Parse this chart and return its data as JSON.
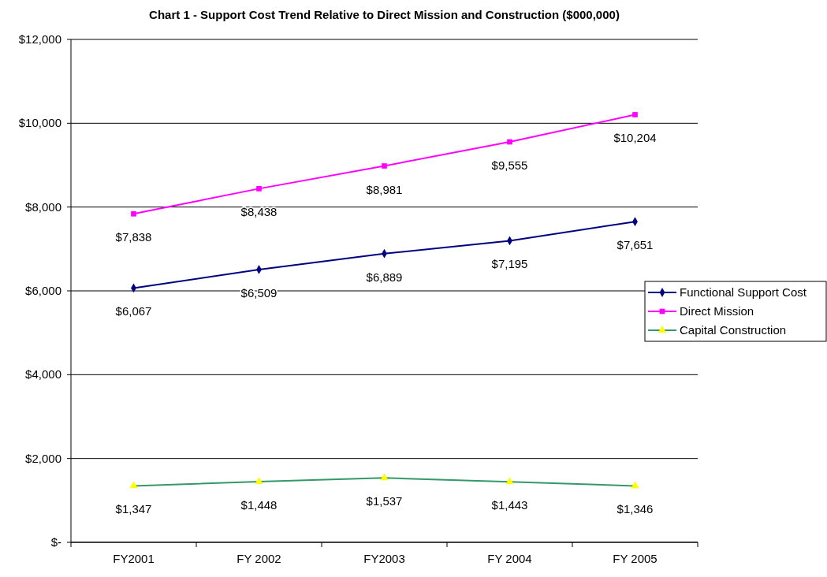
{
  "chart_data": {
    "type": "line",
    "title": "Chart 1 - Support Cost Trend Relative to Direct Mission and Construction ($000,000)",
    "categories": [
      "FY2001",
      "FY 2002",
      "FY2003",
      "FY 2004",
      "FY 2005"
    ],
    "ylim": [
      0,
      12000
    ],
    "yticks": [
      {
        "value": 0,
        "label": "$-"
      },
      {
        "value": 2000,
        "label": "$2,000"
      },
      {
        "value": 4000,
        "label": "$4,000"
      },
      {
        "value": 6000,
        "label": "$6,000"
      },
      {
        "value": 8000,
        "label": "$8,000"
      },
      {
        "value": 10000,
        "label": "$10,000"
      },
      {
        "value": 12000,
        "label": "$12,000"
      }
    ],
    "grid": "y",
    "legend": "right",
    "series": [
      {
        "name": "Functional Support Cost",
        "color": "#000080",
        "marker": "diamond",
        "values": [
          6067,
          6509,
          6889,
          7195,
          7651
        ],
        "value_labels": [
          "$6,067",
          "$6,509",
          "$6,889",
          "$7,195",
          "$7,651"
        ]
      },
      {
        "name": "Direct Mission",
        "color": "#ff00ff",
        "marker": "square",
        "values": [
          7838,
          8438,
          8981,
          9555,
          10204
        ],
        "value_labels": [
          "$7,838",
          "$8,438",
          "$8,981",
          "$9,555",
          "$10,204"
        ]
      },
      {
        "name": "Capital Construction",
        "color": "#339966",
        "colors": [
          "#ffff00",
          "#ffff00",
          "#ffff00",
          "#ffff00",
          "#ffff00"
        ],
        "marker": "triangle",
        "values": [
          1347,
          1448,
          1537,
          1443,
          1346
        ],
        "value_labels": [
          "$1,347",
          "$1,448",
          "$1,537",
          "$1,443",
          "$1,346"
        ]
      }
    ]
  }
}
